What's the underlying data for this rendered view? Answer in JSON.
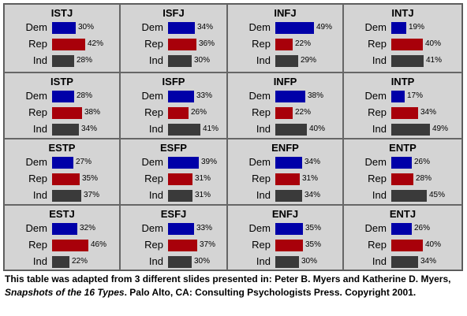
{
  "chart_data": {
    "type": "bar",
    "layout": "4x4 grid of small horizontal bar charts",
    "categories": [
      "Dem",
      "Rep",
      "Ind"
    ],
    "colors": {
      "Dem": "#0000a8",
      "Rep": "#a8000a",
      "Ind": "#3a3a3a"
    },
    "grid_background": "#d4d4d4",
    "panels": [
      {
        "title": "ISTJ",
        "values": [
          30,
          42,
          28
        ]
      },
      {
        "title": "ISFJ",
        "values": [
          34,
          36,
          30
        ]
      },
      {
        "title": "INFJ",
        "values": [
          49,
          22,
          29
        ]
      },
      {
        "title": "INTJ",
        "values": [
          19,
          40,
          41
        ]
      },
      {
        "title": "ISTP",
        "values": [
          28,
          38,
          34
        ]
      },
      {
        "title": "ISFP",
        "values": [
          33,
          26,
          41
        ]
      },
      {
        "title": "INFP",
        "values": [
          38,
          22,
          40
        ]
      },
      {
        "title": "INTP",
        "values": [
          17,
          34,
          49
        ]
      },
      {
        "title": "ESTP",
        "values": [
          27,
          35,
          37
        ]
      },
      {
        "title": "ESFP",
        "values": [
          39,
          31,
          31
        ]
      },
      {
        "title": "ENFP",
        "values": [
          34,
          31,
          34
        ]
      },
      {
        "title": "ENTP",
        "values": [
          26,
          28,
          45
        ]
      },
      {
        "title": "ESTJ",
        "values": [
          32,
          46,
          22
        ]
      },
      {
        "title": "ESFJ",
        "values": [
          33,
          37,
          30
        ]
      },
      {
        "title": "ENFJ",
        "values": [
          35,
          35,
          30
        ]
      },
      {
        "title": "ENTJ",
        "values": [
          26,
          40,
          34
        ]
      }
    ]
  },
  "caption": {
    "part1": "This table was adapted from 3 different slides presented in: Peter B. Myers and Katherine D. Myers, ",
    "italic": "Snapshots of the 16 Types",
    "part2": ". Palo Alto, CA: Consulting Psychologists Press. Copyright 2001."
  }
}
